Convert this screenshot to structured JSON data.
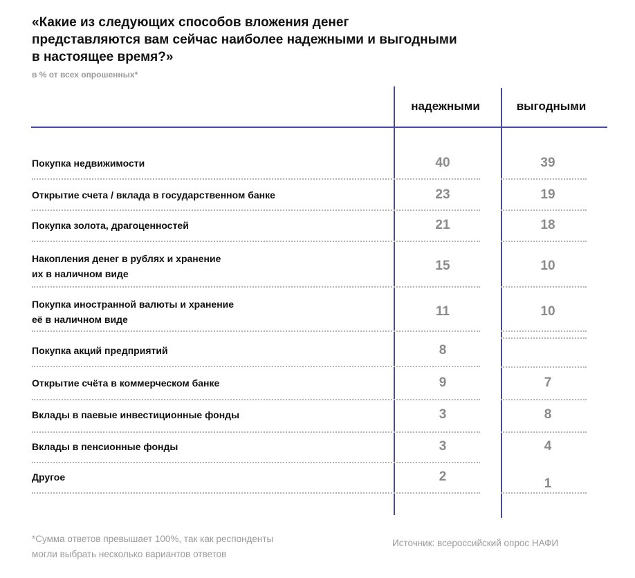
{
  "title_lines": [
    "«Какие из следующих способов вложения денег",
    "представляются вам сейчас наиболее надежными и  выгодными",
    "в настоящее время?»"
  ],
  "subtitle": "в % от всех опрошенных*",
  "chart_data": {
    "type": "table",
    "columns": [
      "надежными",
      "выгодными"
    ],
    "rows": [
      {
        "label": [
          "Покупка недвижимости"
        ],
        "values": [
          "40",
          "39"
        ]
      },
      {
        "label": [
          "Открытие счета / вклада в государственном банке"
        ],
        "values": [
          "23",
          "19"
        ]
      },
      {
        "label": [
          "Покупка золота, драгоценностей"
        ],
        "values": [
          "21",
          "18"
        ]
      },
      {
        "label": [
          "Накопления денег в рублях и хранение",
          "их в наличном виде"
        ],
        "values": [
          "15",
          "10"
        ]
      },
      {
        "label": [
          "Покупка иностранной валюты и хранение",
          "её в наличном виде"
        ],
        "values": [
          "11",
          "10"
        ]
      },
      {
        "label": [
          "Покупка акций предприятий"
        ],
        "values": [
          "8",
          ""
        ]
      },
      {
        "label": [
          "Открытие счёта в коммерческом банке"
        ],
        "values": [
          "9",
          "7"
        ]
      },
      {
        "label": [
          "Вклады в паевые инвестиционные фонды"
        ],
        "values": [
          "3",
          "8"
        ]
      },
      {
        "label": [
          "Вклады в пенсионные фонды"
        ],
        "values": [
          "3",
          "4"
        ]
      },
      {
        "label": [
          "Другое"
        ],
        "values": [
          "2",
          "1"
        ]
      }
    ]
  },
  "footnote_lines": [
    "*Сумма ответов превышает 100%, так как респонденты",
    "могли выбрать несколько вариантов ответов"
  ],
  "source": "Источник: всероссийский опрос НАФИ",
  "colors": {
    "accent": "#4b4a94",
    "value": "#8a8a8a"
  }
}
